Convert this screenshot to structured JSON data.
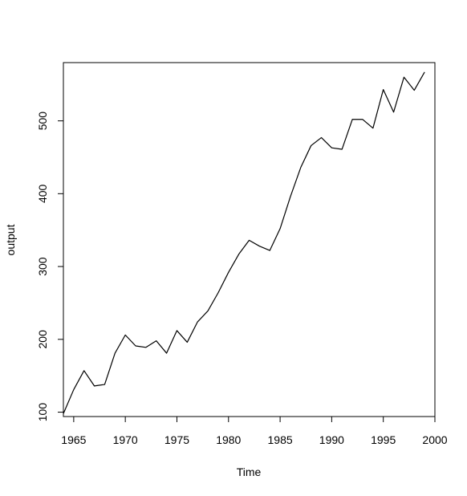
{
  "chart_data": {
    "type": "line",
    "title": "",
    "xlabel": "Time",
    "ylabel": "output",
    "xlim": [
      1964,
      2000
    ],
    "ylim": [
      94,
      580
    ],
    "x_ticks": [
      1965,
      1970,
      1975,
      1980,
      1985,
      1990,
      1995,
      2000
    ],
    "x_tick_labels": [
      "1965",
      "1970",
      "1975",
      "1980",
      "1985",
      "1990",
      "1995",
      "2000"
    ],
    "y_ticks": [
      100,
      200,
      300,
      400,
      500
    ],
    "y_tick_labels": [
      "100",
      "200",
      "300",
      "400",
      "500"
    ],
    "grid": false,
    "line_color": "#000000",
    "series": [
      {
        "x": [
          1964,
          1965,
          1966,
          1967,
          1968,
          1969,
          1970,
          1971,
          1972,
          1973,
          1974,
          1975,
          1976,
          1977,
          1978,
          1979,
          1980,
          1981,
          1982,
          1983,
          1984,
          1985,
          1986,
          1987,
          1988,
          1989,
          1990,
          1991,
          1992,
          1993,
          1994,
          1995,
          1996,
          1997,
          1998,
          1999
        ],
        "values": [
          98,
          131,
          157,
          136,
          138,
          181,
          206,
          191,
          189,
          198,
          181,
          212,
          196,
          224,
          239,
          264,
          292,
          317,
          336,
          328,
          322,
          352,
          396,
          436,
          466,
          477,
          463,
          461,
          502,
          502,
          490,
          543,
          512,
          560,
          542,
          567
        ]
      }
    ]
  }
}
